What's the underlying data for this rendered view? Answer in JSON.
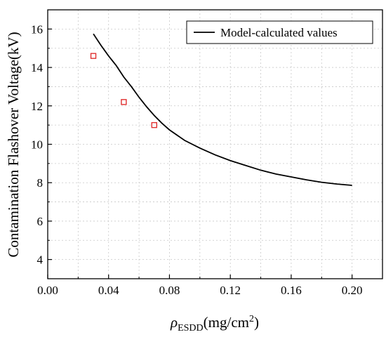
{
  "chart_data": {
    "type": "line",
    "title": "",
    "xlabel_symbol": "ρ",
    "xlabel_subscript": "ESDD",
    "xlabel_unit_prefix": "(mg/cm",
    "xlabel_unit_sup": "2",
    "xlabel_unit_suffix": ")",
    "ylabel": "Contamination Flashover Voltage(kV)",
    "xlim": [
      0.0,
      0.22
    ],
    "ylim": [
      3,
      17
    ],
    "x_ticks": [
      0.0,
      0.04,
      0.08,
      0.12,
      0.16,
      0.2
    ],
    "x_tick_labels": [
      "0.00",
      "0.04",
      "0.08",
      "0.12",
      "0.16",
      "0.20"
    ],
    "y_ticks": [
      4,
      6,
      8,
      10,
      12,
      14,
      16
    ],
    "y_tick_labels": [
      "4",
      "6",
      "8",
      "10",
      "12",
      "14",
      "16"
    ],
    "grid": true,
    "legend_position": "top-right",
    "series": [
      {
        "name": "Model-calculated values",
        "kind": "line",
        "color": "#000000",
        "x": [
          0.03,
          0.035,
          0.04,
          0.045,
          0.05,
          0.055,
          0.06,
          0.065,
          0.07,
          0.075,
          0.08,
          0.09,
          0.1,
          0.11,
          0.12,
          0.13,
          0.14,
          0.15,
          0.16,
          0.17,
          0.18,
          0.19,
          0.2
        ],
        "y": [
          15.75,
          15.15,
          14.6,
          14.1,
          13.5,
          13.0,
          12.45,
          11.95,
          11.5,
          11.1,
          10.75,
          10.2,
          9.8,
          9.45,
          9.15,
          8.9,
          8.65,
          8.45,
          8.3,
          8.15,
          8.02,
          7.93,
          7.86
        ]
      },
      {
        "name": "",
        "kind": "scatter",
        "marker": "open-square",
        "color": "#e03030",
        "x": [
          0.03,
          0.05,
          0.07
        ],
        "y": [
          14.6,
          12.2,
          11.0
        ]
      }
    ]
  }
}
